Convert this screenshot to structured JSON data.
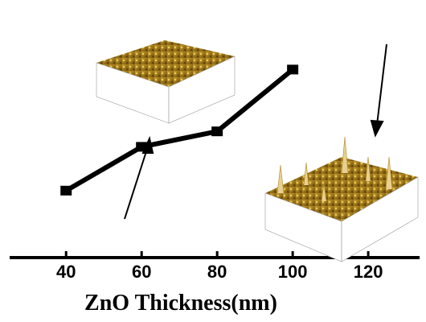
{
  "chart_data": {
    "type": "line",
    "x_label": "ZnO Thickness(nm)",
    "x": [
      40,
      60,
      80,
      100
    ],
    "series": [
      {
        "color": "#000000",
        "values": [
          26,
          43,
          49,
          73
        ]
      }
    ],
    "xlim": [
      22.5,
      135.3
    ],
    "xticks": [
      40,
      60,
      80,
      100,
      120
    ],
    "ylim": [
      0,
      100
    ]
  }
}
